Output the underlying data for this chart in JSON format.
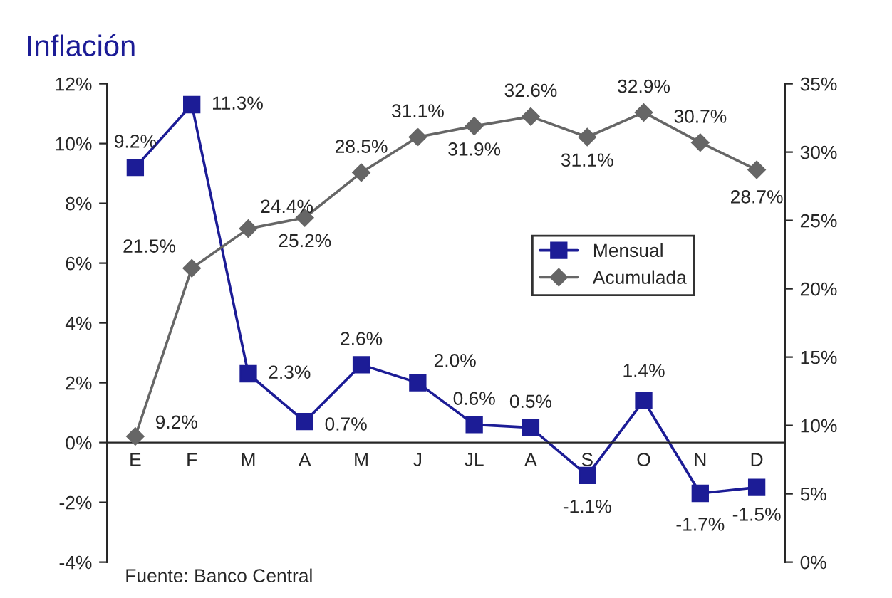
{
  "chart_data": {
    "type": "line",
    "title": "Inflación",
    "categories": [
      "E",
      "F",
      "M",
      "A",
      "M",
      "J",
      "JL",
      "A",
      "S",
      "O",
      "N",
      "D"
    ],
    "series": [
      {
        "name": "Mensual",
        "color": "#1c1c96",
        "marker": "square",
        "values": [
          9.2,
          11.3,
          2.3,
          0.7,
          2.6,
          2.0,
          0.6,
          0.5,
          -1.1,
          1.4,
          -1.7,
          -1.5
        ],
        "value_labels": [
          "9.2%",
          "11.3%",
          "2.3%",
          "0.7%",
          "2.6%",
          "2.0%",
          "0.6%",
          "0.5%",
          "-1.1%",
          "1.4%",
          "-1.7%",
          "-1.5%"
        ]
      },
      {
        "name": "Acumulada",
        "color": "#666666",
        "marker": "diamond",
        "axis": "y2",
        "values": [
          9.2,
          21.5,
          24.4,
          25.2,
          28.5,
          31.1,
          31.9,
          32.6,
          31.1,
          32.9,
          30.7,
          28.7
        ],
        "value_labels": [
          "9.2%",
          "21.5%",
          "24.4%",
          "25.2%",
          "28.5%",
          "31.1%",
          "31.9%",
          "32.6%",
          "31.1%",
          "32.9%",
          "30.7%",
          "28.7%"
        ]
      }
    ],
    "ylim": [
      -4,
      12
    ],
    "yticks": [
      {
        "value": -4,
        "label": "-4%"
      },
      {
        "value": -2,
        "label": "-2%"
      },
      {
        "value": 0,
        "label": "0%"
      },
      {
        "value": 2,
        "label": "2%"
      },
      {
        "value": 4,
        "label": "4%"
      },
      {
        "value": 6,
        "label": "6%"
      },
      {
        "value": 8,
        "label": "8%"
      },
      {
        "value": 10,
        "label": "10%"
      },
      {
        "value": 12,
        "label": "12%"
      }
    ],
    "y2lim": [
      0,
      35
    ],
    "y2ticks": [
      {
        "value": 0,
        "label": "0%"
      },
      {
        "value": 5,
        "label": "5%"
      },
      {
        "value": 10,
        "label": "10%"
      },
      {
        "value": 15,
        "label": "15%"
      },
      {
        "value": 20,
        "label": "20%"
      },
      {
        "value": 25,
        "label": "25%"
      },
      {
        "value": 30,
        "label": "30%"
      },
      {
        "value": 35,
        "label": "35%"
      }
    ],
    "grid": false,
    "legend": "right",
    "line_style": "solid",
    "annotations": [
      "Fuente: Banco Central"
    ]
  }
}
